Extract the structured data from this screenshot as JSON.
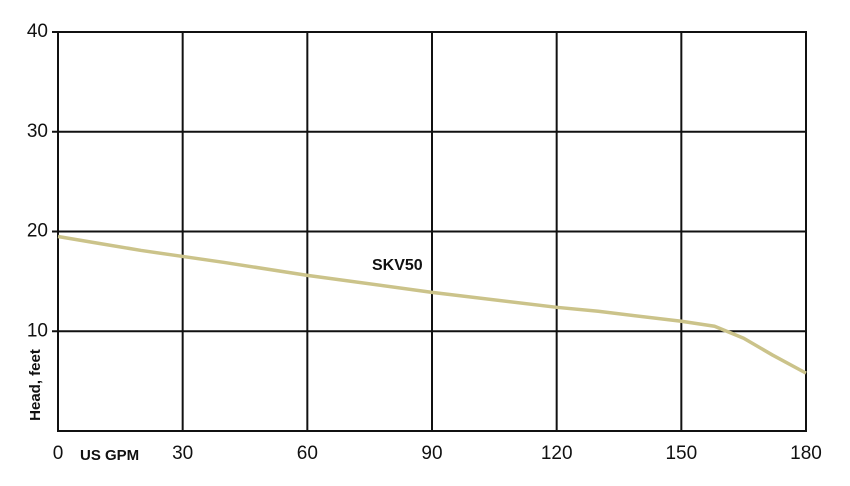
{
  "chart_data": {
    "type": "line",
    "x_label": "US GPM",
    "y_label": "Head, feet",
    "xlim": [
      0,
      180
    ],
    "xticks": [
      0,
      30,
      60,
      90,
      120,
      150,
      180
    ],
    "ylim": [
      0,
      40
    ],
    "yticks": [
      10,
      20,
      30,
      40
    ],
    "grid": true,
    "series": [
      {
        "name": "SKV50",
        "color": "#cbc38a",
        "x": [
          0,
          10,
          20,
          30,
          40,
          60,
          90,
          120,
          130,
          150,
          158,
          165,
          172,
          180
        ],
        "values": [
          19.5,
          18.8,
          18.1,
          17.5,
          16.9,
          15.6,
          13.9,
          12.4,
          12.0,
          11.0,
          10.5,
          9.3,
          7.6,
          5.8
        ]
      }
    ]
  }
}
